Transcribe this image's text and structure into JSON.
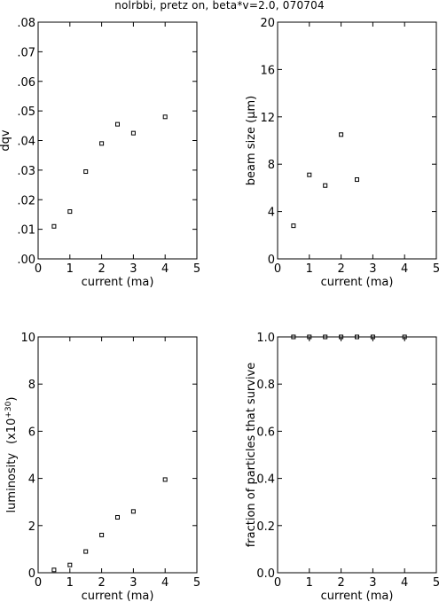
{
  "title": "nolrbbi, pretz on, beta*v=2.0, 070704",
  "chart_data": [
    {
      "type": "scatter",
      "xlabel": "current (ma)",
      "ylabel": "dqv",
      "xlim": [
        0,
        5
      ],
      "ylim": [
        0,
        0.08
      ],
      "xticks": [
        0,
        1,
        2,
        3,
        4,
        5
      ],
      "xtick_labels": [
        "0",
        "1",
        "2",
        "3",
        "4",
        "5"
      ],
      "yticks": [
        0,
        0.01,
        0.02,
        0.03,
        0.04,
        0.05,
        0.06,
        0.07,
        0.08
      ],
      "ytick_labels": [
        ".00",
        ".01",
        ".02",
        ".03",
        ".04",
        ".05",
        ".06",
        ".07",
        ".08"
      ],
      "x": [
        0.5,
        1.0,
        1.5,
        2.0,
        2.5,
        3.0,
        4.0
      ],
      "y": [
        0.011,
        0.016,
        0.0295,
        0.039,
        0.0455,
        0.0425,
        0.048
      ]
    },
    {
      "type": "scatter",
      "xlabel": "current (ma)",
      "ylabel": "beam size (μm)",
      "xlim": [
        0,
        5
      ],
      "ylim": [
        0,
        20
      ],
      "xticks": [
        0,
        1,
        2,
        3,
        4,
        5
      ],
      "xtick_labels": [
        "0",
        "1",
        "2",
        "3",
        "4",
        "5"
      ],
      "yticks": [
        0,
        4,
        8,
        12,
        16,
        20
      ],
      "ytick_labels": [
        "0",
        "4",
        "8",
        "12",
        "16",
        "20"
      ],
      "x": [
        0.5,
        1.0,
        1.5,
        2.0,
        2.5
      ],
      "y": [
        2.8,
        7.1,
        6.2,
        10.5,
        6.7
      ]
    },
    {
      "type": "scatter",
      "xlabel": "current (ma)",
      "ylabel": "luminosity",
      "ylabel_unit": "(x10",
      "ylabel_exp": "+30",
      "ylabel_close": ")",
      "xlim": [
        0,
        5
      ],
      "ylim": [
        0,
        10
      ],
      "xticks": [
        0,
        1,
        2,
        3,
        4,
        5
      ],
      "xtick_labels": [
        "0",
        "1",
        "2",
        "3",
        "4",
        "5"
      ],
      "yticks": [
        0,
        2,
        4,
        6,
        8,
        10
      ],
      "ytick_labels": [
        "0",
        "2",
        "4",
        "6",
        "8",
        "10"
      ],
      "x": [
        0.5,
        1.0,
        1.5,
        2.0,
        2.5,
        3.0,
        4.0
      ],
      "y": [
        0.12,
        0.33,
        0.9,
        1.6,
        2.35,
        2.6,
        3.95
      ]
    },
    {
      "type": "scatter",
      "xlabel": "current (ma)",
      "ylabel": "fraction of particles that survive",
      "xlim": [
        0,
        5
      ],
      "ylim": [
        0,
        1
      ],
      "xticks": [
        0,
        1,
        2,
        3,
        4,
        5
      ],
      "xtick_labels": [
        "0",
        "1",
        "2",
        "3",
        "4",
        "5"
      ],
      "yticks": [
        0,
        0.2,
        0.4,
        0.6,
        0.8,
        1.0
      ],
      "ytick_labels": [
        "0.0",
        "0.2",
        "0.4",
        "0.6",
        "0.8",
        "1.0"
      ],
      "x": [
        0.5,
        1.0,
        1.5,
        2.0,
        2.5,
        3.0,
        4.0
      ],
      "y": [
        1.0,
        1.0,
        1.0,
        1.0,
        1.0,
        1.0,
        1.0
      ]
    }
  ]
}
